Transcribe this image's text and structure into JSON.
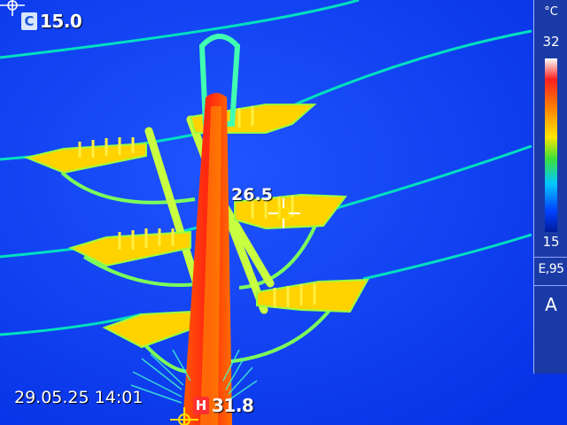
{
  "overlay": {
    "min_badge": "C",
    "min_temp": "15.0",
    "max_badge": "H",
    "max_temp": "31.8",
    "spot_temp": "26.5",
    "timestamp": "29.05.25 14:01"
  },
  "scale_panel": {
    "unit": "°C",
    "max_label": "32",
    "min_label": "15",
    "emissivity": "E,95",
    "mode": "A"
  },
  "colors": {
    "background": "#0a3cf0",
    "pole": "#ff3a10",
    "hot_core": "#ff8000",
    "insulator": "#ffd000",
    "wire_glow": "#00ff90"
  }
}
